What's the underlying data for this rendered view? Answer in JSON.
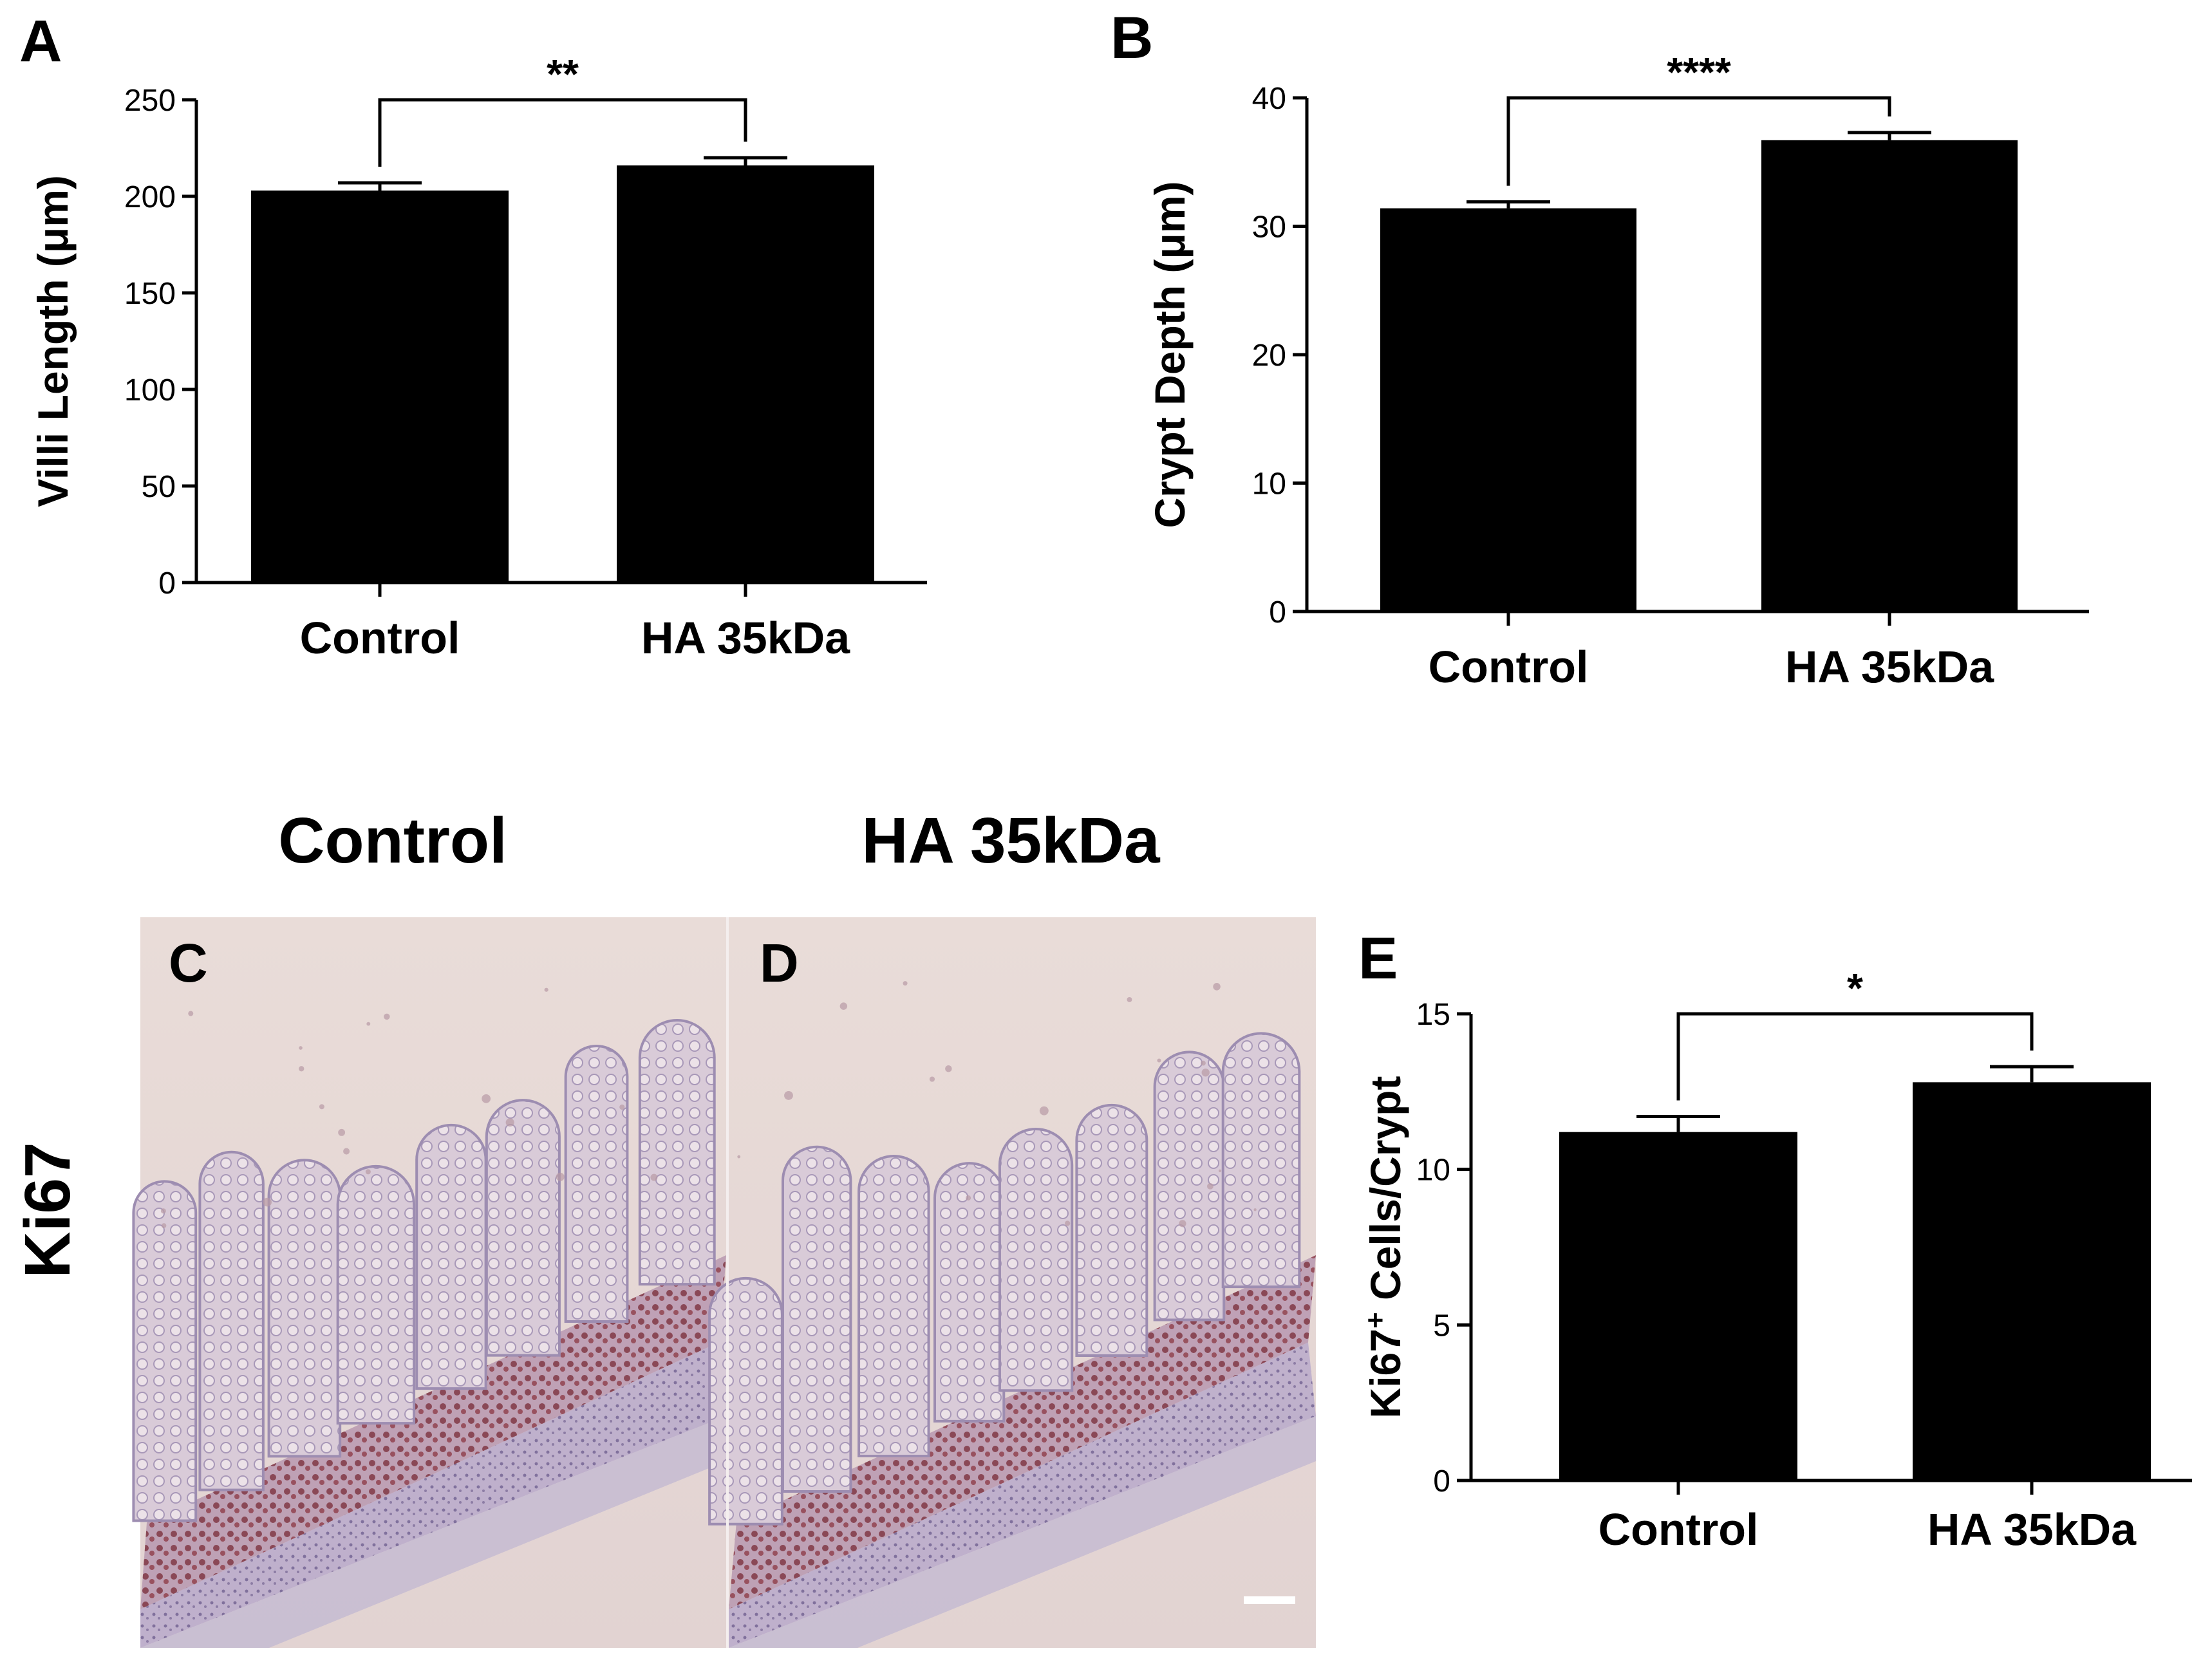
{
  "chart_data": [
    {
      "panel": "A",
      "type": "bar",
      "categories": [
        "Control",
        "HA 35kDa"
      ],
      "values": [
        203,
        216
      ],
      "errors": [
        4,
        4
      ],
      "ylabel": "Villi Length (μm)",
      "ylim": [
        0,
        250
      ],
      "yticks": [
        "0",
        "50",
        "100",
        "150",
        "200",
        "250"
      ],
      "significance": "**",
      "bar_color": "#000000"
    },
    {
      "panel": "B",
      "type": "bar",
      "categories": [
        "Control",
        "HA 35kDa"
      ],
      "values": [
        31.4,
        36.7
      ],
      "errors": [
        0.5,
        0.6
      ],
      "ylabel": "Crypt Depth (μm)",
      "ylim": [
        0,
        40
      ],
      "yticks": [
        "0",
        "10",
        "20",
        "30",
        "40"
      ],
      "significance": "****",
      "bar_color": "#000000"
    },
    {
      "panel": "E",
      "type": "bar",
      "categories": [
        "Control",
        "HA 35kDa"
      ],
      "values": [
        11.2,
        12.8
      ],
      "errors": [
        0.5,
        0.5
      ],
      "ylabel_main": "Ki67",
      "ylabel_sup": "+",
      "ylabel_rest": " Cells/Crypt",
      "ylim": [
        0,
        15
      ],
      "yticks": [
        "0",
        "5",
        "10",
        "15"
      ],
      "significance": "*",
      "bar_color": "#000000"
    }
  ],
  "micrographs": {
    "headers": [
      "Control",
      "HA 35kDa"
    ],
    "row_label": "Ki67",
    "letters": [
      "C",
      "D"
    ]
  }
}
